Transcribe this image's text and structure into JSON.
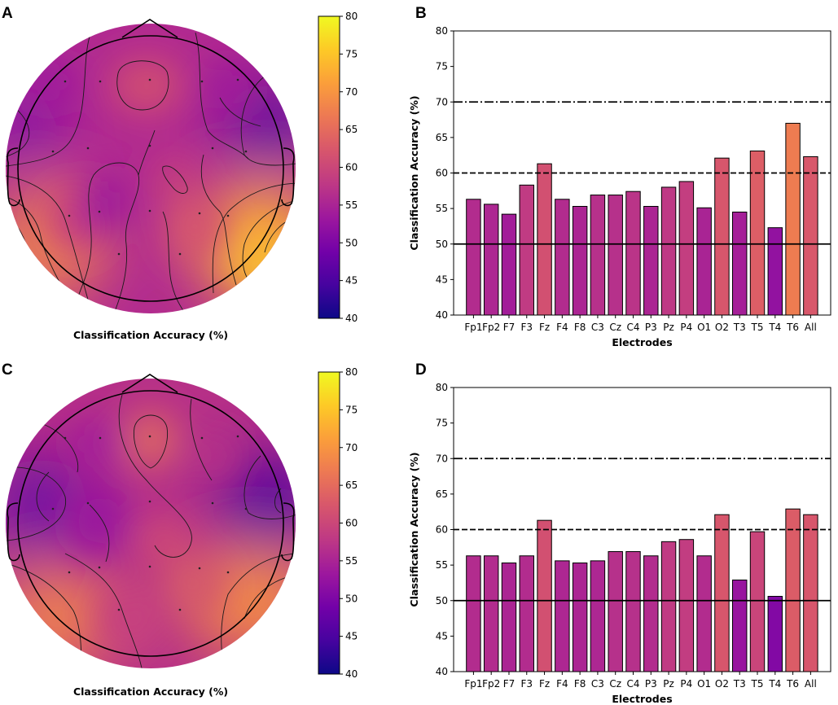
{
  "panel_labels": {
    "a": "A",
    "b": "B",
    "c": "C",
    "d": "D"
  },
  "colormap": [
    "#0d0887",
    "#46039f",
    "#7201a8",
    "#9c179e",
    "#bd3786",
    "#d8576b",
    "#ed7953",
    "#fb9f3a",
    "#fdca26",
    "#f0f921"
  ],
  "chart_data": [
    {
      "panel": "A",
      "type": "heatmap",
      "subtype": "scalp-topography",
      "xlabel": "Classification Accuracy (%)",
      "colorbar": {
        "min": 40,
        "max": 80,
        "ticks": [
          40,
          45,
          50,
          55,
          60,
          65,
          70,
          75,
          80
        ]
      },
      "note": "Topographic map of per-electrode classification accuracy (same electrodes as panel B)"
    },
    {
      "panel": "B",
      "type": "bar",
      "categories": [
        "Fp1",
        "Fp2",
        "F7",
        "F3",
        "Fz",
        "F4",
        "F8",
        "C3",
        "Cz",
        "C4",
        "P3",
        "Pz",
        "P4",
        "O1",
        "O2",
        "T3",
        "T5",
        "T4",
        "T6",
        "All"
      ],
      "values": [
        56.3,
        55.6,
        54.2,
        58.3,
        61.3,
        56.3,
        55.3,
        56.9,
        56.9,
        57.4,
        55.3,
        58.0,
        58.8,
        55.1,
        62.1,
        54.5,
        63.1,
        52.3,
        67.0,
        62.3
      ],
      "xlabel": "Electrodes",
      "ylabel": "Classification Accuracy (%)",
      "ylim": [
        40,
        80
      ],
      "yticks": [
        40,
        45,
        50,
        55,
        60,
        65,
        70,
        75,
        80
      ],
      "reference_lines": [
        {
          "y": 50,
          "style": "solid"
        },
        {
          "y": 60,
          "style": "dashed"
        },
        {
          "y": 70,
          "style": "dashdot"
        }
      ]
    },
    {
      "panel": "C",
      "type": "heatmap",
      "subtype": "scalp-topography",
      "xlabel": "Classification Accuracy (%)",
      "colorbar": {
        "min": 40,
        "max": 80,
        "ticks": [
          40,
          45,
          50,
          55,
          60,
          65,
          70,
          75,
          80
        ]
      },
      "note": "Topographic map of per-electrode classification accuracy (same electrodes as panel D)"
    },
    {
      "panel": "D",
      "type": "bar",
      "categories": [
        "Fp1",
        "Fp2",
        "F7",
        "F3",
        "Fz",
        "F4",
        "F8",
        "C3",
        "Cz",
        "C4",
        "P3",
        "Pz",
        "P4",
        "O1",
        "O2",
        "T3",
        "T5",
        "T4",
        "T6",
        "All"
      ],
      "values": [
        56.3,
        56.3,
        55.3,
        56.3,
        61.3,
        55.6,
        55.3,
        55.6,
        56.9,
        56.9,
        56.3,
        58.3,
        58.6,
        56.3,
        62.1,
        52.9,
        59.7,
        50.6,
        62.9,
        62.1
      ],
      "xlabel": "Electrodes",
      "ylabel": "Classification Accuracy (%)",
      "ylim": [
        40,
        80
      ],
      "yticks": [
        40,
        45,
        50,
        55,
        60,
        65,
        70,
        75,
        80
      ],
      "reference_lines": [
        {
          "y": 50,
          "style": "solid"
        },
        {
          "y": 60,
          "style": "dashed"
        },
        {
          "y": 70,
          "style": "dashdot"
        }
      ]
    }
  ]
}
